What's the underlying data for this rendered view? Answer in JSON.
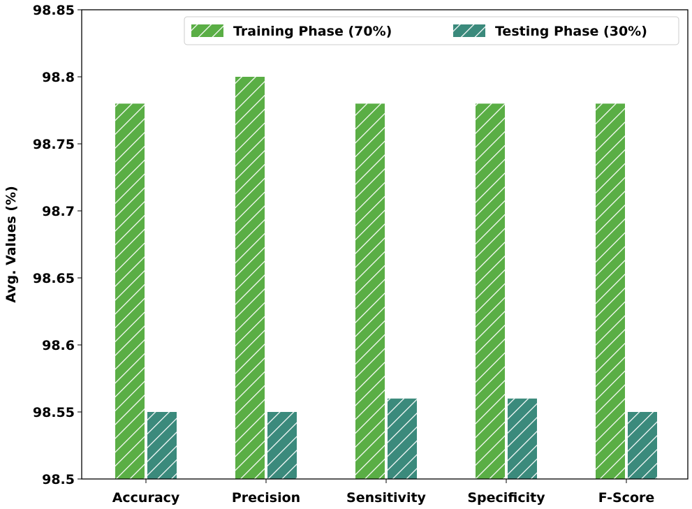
{
  "chart_data": {
    "type": "bar",
    "title": "",
    "xlabel": "",
    "ylabel": "Avg. Values (%)",
    "ylim": [
      98.5,
      98.85
    ],
    "yticks": [
      "98.5",
      "98.55",
      "98.6",
      "98.65",
      "98.7",
      "98.75",
      "98.8",
      "98.85"
    ],
    "categories": [
      "Accuracy",
      "Precision",
      "Sensitivity",
      "Specificity",
      "F-Score"
    ],
    "series": [
      {
        "name": "Training Phase (70%)",
        "color": "#5aae45",
        "values": [
          98.78,
          98.8,
          98.78,
          98.78,
          98.78
        ]
      },
      {
        "name": "Testing Phase (30%)",
        "color": "#3b8a7c",
        "values": [
          98.55,
          98.55,
          98.56,
          98.56,
          98.55
        ]
      }
    ],
    "legend_position": "top-right",
    "hatch": "diagonal"
  }
}
